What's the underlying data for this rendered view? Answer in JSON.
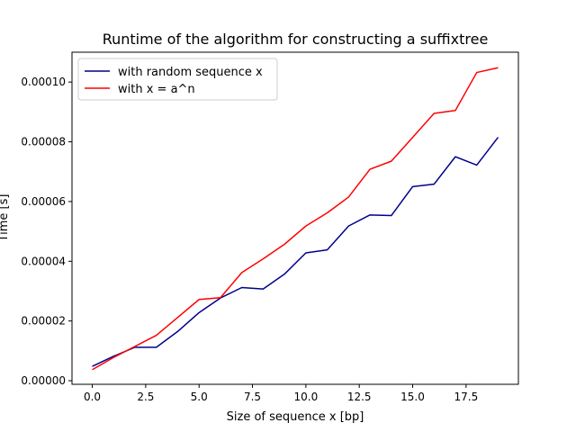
{
  "chart_data": {
    "type": "line",
    "title": "Runtime of the algorithm for constructing a suffixtree",
    "xlabel": "Size of sequence x [bp]",
    "ylabel": "Time [s]",
    "xlim": [
      -0.95,
      19.95
    ],
    "ylim": [
      -1.2e-06,
      0.00011
    ],
    "xticks": [
      0,
      2.5,
      5,
      7.5,
      10,
      12.5,
      15,
      17.5
    ],
    "xtick_labels": [
      "0.0",
      "2.5",
      "5.0",
      "7.5",
      "10.0",
      "12.5",
      "15.0",
      "17.5"
    ],
    "yticks": [
      0,
      2e-05,
      4e-05,
      6e-05,
      8e-05,
      0.0001
    ],
    "ytick_labels": [
      "0.00000",
      "0.00002",
      "0.00004",
      "0.00006",
      "0.00008",
      "0.00010"
    ],
    "grid": false,
    "legend_position": "top-left",
    "x": [
      0,
      1,
      2,
      3,
      4,
      5,
      6,
      7,
      8,
      9,
      10,
      11,
      12,
      13,
      14,
      15,
      16,
      17,
      18,
      19
    ],
    "series": [
      {
        "name": "with random sequence x",
        "color": "#00008b",
        "values": [
          4.8e-06,
          8.2e-06,
          1.12e-05,
          1.12e-05,
          1.65e-05,
          2.28e-05,
          2.77e-05,
          3.12e-05,
          3.07e-05,
          3.57e-05,
          4.28e-05,
          4.38e-05,
          5.18e-05,
          5.55e-05,
          5.53e-05,
          6.5e-05,
          6.58e-05,
          7.5e-05,
          7.22e-05,
          8.15e-05
        ]
      },
      {
        "name": "with x = a^n",
        "color": "#ff0000",
        "values": [
          3.7e-06,
          7.8e-06,
          1.15e-05,
          1.52e-05,
          2.12e-05,
          2.72e-05,
          2.78e-05,
          3.62e-05,
          4.08e-05,
          4.57e-05,
          5.18e-05,
          5.62e-05,
          6.15e-05,
          7.08e-05,
          7.35e-05,
          8.15e-05,
          8.95e-05,
          9.05e-05,
          0.0001032,
          0.0001048
        ]
      }
    ]
  }
}
